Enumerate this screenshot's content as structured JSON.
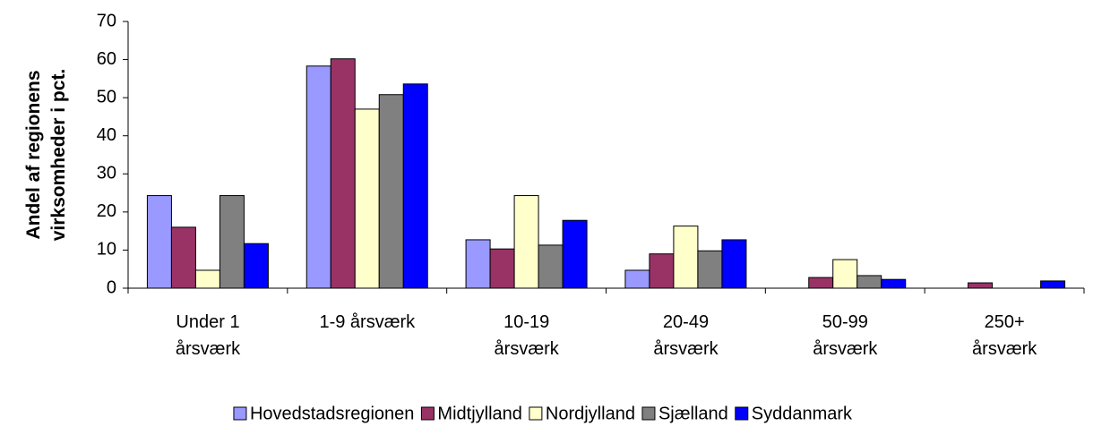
{
  "chart_data": {
    "type": "bar",
    "ylabel": "Andel af regionens\nvirksomheder i pct.",
    "categories": [
      "Under 1\nårsværk",
      "1-9 årsværk",
      "10-19\nårsværk",
      "20-49\nårsværk",
      "50-99\nårsværk",
      "250+\nårsværk"
    ],
    "series": [
      {
        "name": "Hovedstadsregionen",
        "color": "#9999ff",
        "values": [
          24.3,
          58.3,
          12.7,
          4.7,
          0,
          0
        ]
      },
      {
        "name": "Midtjylland",
        "color": "#993366",
        "values": [
          16,
          60.2,
          10.3,
          9,
          2.8,
          1.4
        ]
      },
      {
        "name": "Nordjylland",
        "color": "#ffffcc",
        "values": [
          4.7,
          47,
          24.3,
          16.3,
          7.5,
          0
        ]
      },
      {
        "name": "Sjælland",
        "color": "#808080",
        "values": [
          24.3,
          50.8,
          11.3,
          9.8,
          3.3,
          0
        ]
      },
      {
        "name": "Syddanmark",
        "color": "#0000ff",
        "values": [
          11.7,
          53.6,
          17.8,
          12.7,
          2.3,
          1.9
        ]
      }
    ],
    "ylim": [
      0,
      70
    ],
    "yticks": [
      0,
      10,
      20,
      30,
      40,
      50,
      60,
      70
    ],
    "grid": false,
    "legend": "bottom"
  }
}
